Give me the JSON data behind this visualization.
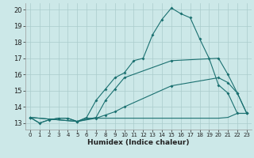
{
  "title": "",
  "xlabel": "Humidex (Indice chaleur)",
  "background_color": "#cce8e8",
  "grid_color": "#aacccc",
  "line_color": "#1a7070",
  "xlim": [
    -0.5,
    23.5
  ],
  "ylim": [
    12.6,
    20.4
  ],
  "yticks": [
    13,
    14,
    15,
    16,
    17,
    18,
    19,
    20
  ],
  "xticks": [
    0,
    1,
    2,
    3,
    4,
    5,
    6,
    7,
    8,
    9,
    10,
    11,
    12,
    13,
    14,
    15,
    16,
    17,
    18,
    19,
    20,
    21,
    22,
    23
  ],
  "line1_x": [
    0,
    1,
    2,
    3,
    4,
    5,
    6,
    7,
    8,
    9,
    10,
    11,
    12,
    13,
    14,
    15,
    16,
    17,
    18,
    19,
    20,
    21,
    22,
    23
  ],
  "line1_y": [
    13.35,
    13.0,
    13.2,
    13.3,
    13.3,
    13.1,
    13.35,
    14.4,
    15.1,
    15.8,
    16.1,
    16.85,
    17.0,
    18.45,
    19.4,
    20.1,
    19.75,
    19.5,
    18.2,
    17.0,
    15.35,
    14.85,
    13.6,
    13.6
  ],
  "line2_x": [
    0,
    1,
    2,
    3,
    4,
    5,
    6,
    7,
    8,
    9,
    10,
    11,
    12,
    13,
    14,
    15,
    16,
    17,
    18,
    19,
    20,
    21,
    22,
    23
  ],
  "line2_y": [
    13.35,
    13.0,
    13.2,
    13.3,
    13.3,
    13.1,
    13.3,
    13.3,
    13.3,
    13.3,
    13.3,
    13.3,
    13.3,
    13.3,
    13.3,
    13.3,
    13.3,
    13.3,
    13.3,
    13.3,
    13.3,
    13.35,
    13.6,
    13.6
  ],
  "line3_x": [
    0,
    5,
    7,
    8,
    9,
    10,
    15,
    20,
    21,
    22,
    23
  ],
  "line3_y": [
    13.35,
    13.1,
    13.3,
    13.5,
    13.7,
    14.0,
    15.3,
    15.8,
    15.5,
    14.85,
    13.6
  ],
  "line4_x": [
    0,
    5,
    7,
    8,
    9,
    10,
    15,
    20,
    21,
    22,
    23
  ],
  "line4_y": [
    13.35,
    13.1,
    13.35,
    14.4,
    15.1,
    15.8,
    16.85,
    17.0,
    16.0,
    14.85,
    13.6
  ]
}
